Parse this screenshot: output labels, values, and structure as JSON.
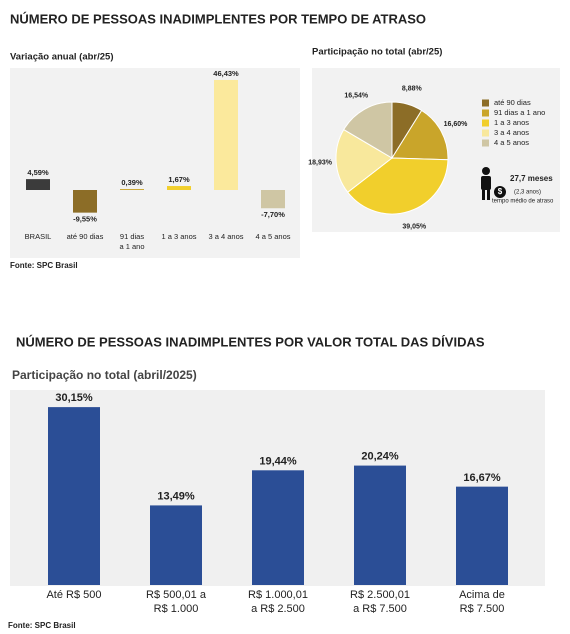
{
  "headings": [
    "NÚMERO DE PESSOAS INADIMPLENTES POR TEMPO DE ATRASO",
    "NÚMERO DE PESSOAS INADIMPLENTES POR VALOR TOTAL DAS DÍVIDAS"
  ],
  "sources": [
    "Fonte: SPC Brasil",
    "Fonte: SPC Brasil"
  ],
  "chart_data": [
    {
      "type": "bar",
      "title": "Variação anual (abr/25)",
      "categories": [
        [
          "BRASIL"
        ],
        [
          "até 90 dias"
        ],
        [
          "91 dias",
          "a 1 ano"
        ],
        [
          "1 a 3 anos"
        ],
        [
          "3 a 4 anos"
        ],
        [
          "4 a 5 anos"
        ]
      ],
      "values": [
        4.59,
        -9.55,
        0.39,
        1.67,
        46.43,
        -7.7
      ],
      "value_labels": [
        "4,59%",
        "-9,55%",
        "0,39%",
        "1,67%",
        "46,43%",
        "-7,70%"
      ],
      "colors": [
        "#3b3b3b",
        "#8c6d27",
        "#c9a52a",
        "#f1cf2c",
        "#fbe99c",
        "#cfc6a4"
      ]
    },
    {
      "type": "pie",
      "title": "Participação no total (abr/25)",
      "categories": [
        "até 90 dias",
        "91 dias a 1 ano",
        "1 a 3 anos",
        "3 a 4 anos",
        "4 a 5 anos"
      ],
      "values": [
        8.88,
        16.6,
        39.05,
        18.93,
        16.54
      ],
      "value_labels": [
        "8,88%",
        "16,60%",
        "39,05%",
        "18,93%",
        "16,54%"
      ],
      "colors": [
        "#8c6d27",
        "#c9a52a",
        "#f1cf2c",
        "#f8e89c",
        "#cfc6a4"
      ],
      "annotations": [
        "27,7 meses",
        "(2,3 anos)",
        "tempo médio de atraso"
      ]
    },
    {
      "type": "bar",
      "title": "Participação no total (abril/2025)",
      "categories": [
        [
          "Até R$ 500"
        ],
        [
          "R$ 500,01 a",
          "R$ 1.000"
        ],
        [
          "R$ 1.000,01",
          "a R$ 2.500"
        ],
        [
          "R$ 2.500,01",
          "a R$ 7.500"
        ],
        [
          "Acima de",
          "R$ 7.500"
        ]
      ],
      "values": [
        30.15,
        13.49,
        19.44,
        20.24,
        16.67
      ],
      "value_labels": [
        "30,15%",
        "13,49%",
        "19,44%",
        "20,24%",
        "16,67%"
      ],
      "color": "#2b4e96"
    }
  ]
}
